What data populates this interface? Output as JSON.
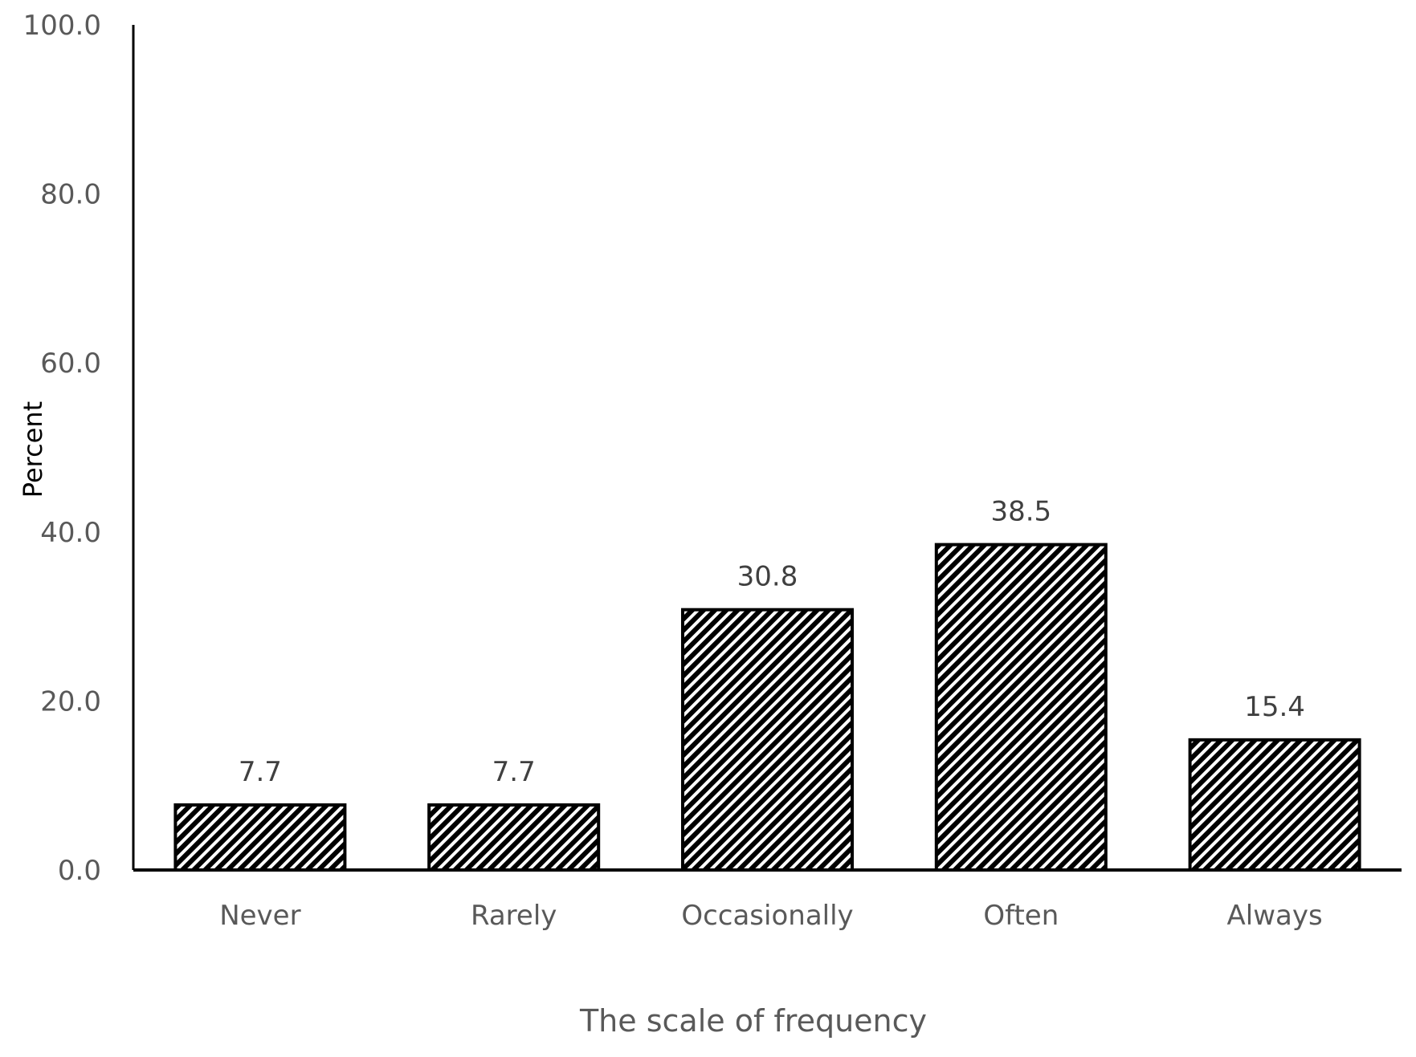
{
  "chart_data": {
    "type": "bar",
    "title": "",
    "xlabel": "The scale of frequency",
    "ylabel": "Percent",
    "categories": [
      "Never",
      "Rarely",
      "Occasionally",
      "Often",
      "Always"
    ],
    "values": [
      7.7,
      7.7,
      30.8,
      38.5,
      15.4
    ],
    "data_labels": [
      "7.7",
      "7.7",
      "30.8",
      "38.5",
      "15.4"
    ],
    "ylim": [
      0,
      100
    ],
    "yticks": [
      "0.0",
      "20.0",
      "40.0",
      "60.0",
      "80.0",
      "100.0"
    ],
    "grid": false,
    "legend": "none",
    "bar_fill": "diagonal hatch, black on white",
    "bar_color": "#000000"
  }
}
